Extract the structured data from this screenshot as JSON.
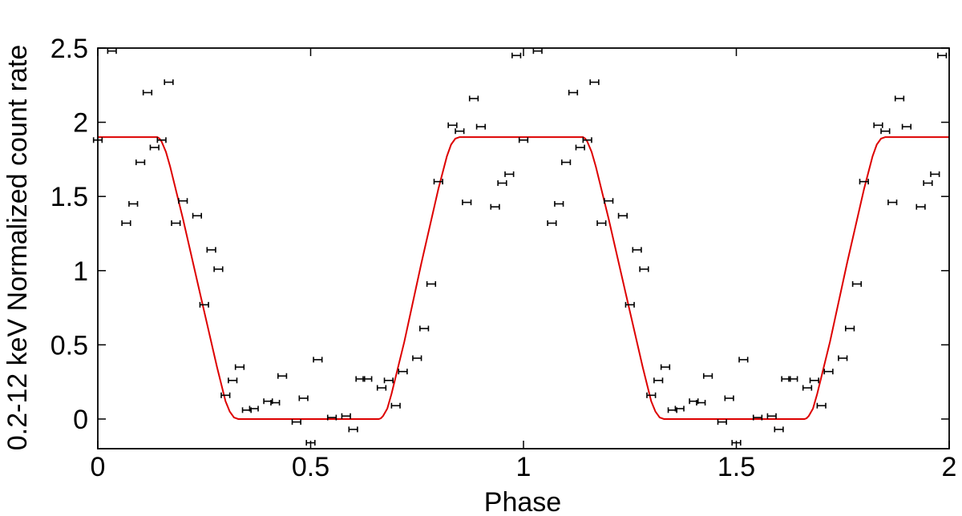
{
  "chart_data": {
    "type": "scatter",
    "title": "",
    "xlabel": "Phase",
    "ylabel": "0.2-12 keV Normalized count rate",
    "xlim": [
      0,
      2
    ],
    "ylim": [
      -0.2,
      2.5
    ],
    "xticks": [
      0,
      0.5,
      1,
      1.5,
      2
    ],
    "xtick_labels": [
      "0",
      "0.5",
      "1",
      "1.5",
      "2"
    ],
    "yticks": [
      0,
      0.5,
      1,
      1.5,
      2,
      2.5
    ],
    "ytick_labels": [
      "0",
      "0.5",
      "1",
      "1.5",
      "2",
      "2.5"
    ],
    "grid": false,
    "legend": "none",
    "colors": {
      "data": "#000000",
      "model": "#dd0000",
      "frame": "#000000"
    },
    "series": [
      {
        "kind": "data-with-errorbars",
        "color": "#000000",
        "xerr": 0.01,
        "x": [
          0.0,
          0.0333,
          0.0667,
          0.0833,
          0.1,
          0.1167,
          0.1333,
          0.15,
          0.1667,
          0.1833,
          0.2,
          0.2333,
          0.25,
          0.2667,
          0.2833,
          0.3,
          0.3167,
          0.3333,
          0.35,
          0.3667,
          0.4,
          0.4167,
          0.4333,
          0.4667,
          0.4833,
          0.5,
          0.5167,
          0.55,
          0.5833,
          0.6,
          0.6167,
          0.6333,
          0.6667,
          0.6833,
          0.7,
          0.7167,
          0.75,
          0.7667,
          0.7833,
          0.8,
          0.8333,
          0.85,
          0.8667,
          0.8833,
          0.9,
          0.9333,
          0.95,
          0.9667,
          0.9833
        ],
        "y": [
          1.88,
          2.48,
          1.32,
          1.45,
          1.73,
          2.2,
          1.83,
          1.88,
          2.27,
          1.32,
          1.47,
          1.37,
          0.77,
          1.14,
          1.01,
          0.16,
          0.26,
          0.35,
          0.06,
          0.07,
          0.12,
          0.11,
          0.29,
          -0.02,
          0.14,
          -0.16,
          0.4,
          0.01,
          0.02,
          -0.07,
          0.27,
          0.27,
          0.21,
          0.26,
          0.09,
          0.32,
          0.41,
          0.61,
          0.91,
          1.6,
          1.98,
          1.94,
          1.46,
          2.16,
          1.97,
          1.43,
          1.59,
          1.65,
          2.45
        ],
        "yerr": [
          0.012,
          0.012,
          0.012,
          0.012,
          0.012,
          0.012,
          0.012,
          0.012,
          0.012,
          0.012,
          0.012,
          0.012,
          0.012,
          0.012,
          0.012,
          0.012,
          0.012,
          0.012,
          0.012,
          0.012,
          0.012,
          0.012,
          0.012,
          0.012,
          0.012,
          0.012,
          0.012,
          0.012,
          0.012,
          0.012,
          0.012,
          0.012,
          0.012,
          0.012,
          0.012,
          0.012,
          0.012,
          0.012,
          0.012,
          0.012,
          0.012,
          0.012,
          0.012,
          0.012,
          0.012,
          0.012,
          0.012,
          0.012,
          0.012
        ]
      },
      {
        "kind": "model-line",
        "color": "#dd0000",
        "x": [
          0,
          0.14,
          0.145,
          0.15,
          0.16,
          0.17,
          0.2,
          0.24,
          0.28,
          0.3,
          0.31,
          0.32,
          0.33,
          0.66,
          0.665,
          0.67,
          0.68,
          0.69,
          0.72,
          0.76,
          0.8,
          0.82,
          0.83,
          0.84,
          0.85,
          1.14,
          1.145,
          1.15,
          1.16,
          1.17,
          1.2,
          1.24,
          1.28,
          1.3,
          1.31,
          1.32,
          1.33,
          1.66,
          1.665,
          1.67,
          1.68,
          1.69,
          1.72,
          1.76,
          1.8,
          1.82,
          1.83,
          1.84,
          1.85,
          2.0
        ],
        "y": [
          1.9,
          1.9,
          1.89,
          1.87,
          1.8,
          1.7,
          1.35,
          0.85,
          0.35,
          0.12,
          0.05,
          0.01,
          0.0,
          0.0,
          0.005,
          0.02,
          0.07,
          0.17,
          0.52,
          1.05,
          1.55,
          1.77,
          1.85,
          1.89,
          1.9,
          1.9,
          1.89,
          1.87,
          1.8,
          1.7,
          1.35,
          0.85,
          0.35,
          0.12,
          0.05,
          0.01,
          0.0,
          0.0,
          0.005,
          0.02,
          0.07,
          0.17,
          0.52,
          1.05,
          1.55,
          1.77,
          1.85,
          1.89,
          1.9,
          1.9
        ]
      }
    ]
  }
}
